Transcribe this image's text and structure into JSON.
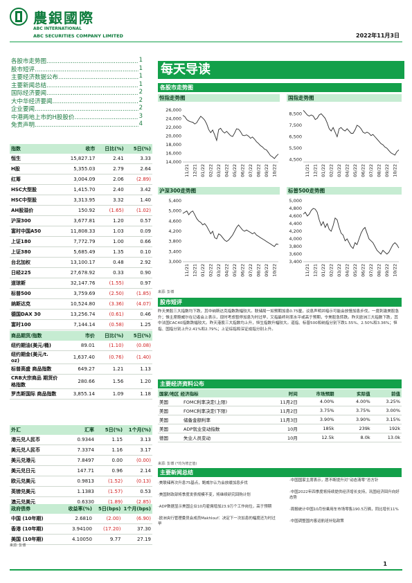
{
  "header": {
    "company_cn": "農銀國際",
    "company_en1": "ABC INTERNATIONAL",
    "company_en2": "ABC SECURITIES COMPANY LIMITED",
    "date": "2022年11月3日",
    "title": "每天导读"
  },
  "toc": [
    {
      "label": "各股市走势图",
      "page": "1"
    },
    {
      "label": "股市短评",
      "page": "1"
    },
    {
      "label": "主要经济数据公布",
      "page": "1"
    },
    {
      "label": "主要新闻总结",
      "page": "1"
    },
    {
      "label": "国际经济要闻",
      "page": "2"
    },
    {
      "label": "大中华经济要闻",
      "page": "2"
    },
    {
      "label": "企业要闻",
      "page": "2"
    },
    {
      "label": "中港两地上市的H股股价",
      "page": "3"
    },
    {
      "label": "免责声明",
      "page": "4"
    }
  ],
  "indices": {
    "headers": [
      "指数",
      "收市",
      "日比(%)",
      "5日(%)"
    ],
    "rows": [
      [
        "恒生",
        "15,827.17",
        "2.41",
        "3.33"
      ],
      [
        "H股",
        "5,355.03",
        "2.79",
        "2.64"
      ],
      [
        "红筹",
        "3,004.09",
        "2.06",
        "(2.89)"
      ],
      [
        "HSC大型股",
        "1,415.70",
        "2.40",
        "3.42"
      ],
      [
        "HSC中型股",
        "3,313.95",
        "3.32",
        "1.40"
      ],
      [
        "AH股溢价",
        "150.92",
        "(1.65)",
        "(1.02)"
      ],
      [
        "沪深300",
        "3,677.81",
        "1.20",
        "0.57"
      ],
      [
        "富时中国A50",
        "11,808.33",
        "1.03",
        "0.09"
      ],
      [
        "上证180",
        "7,772.79",
        "1.00",
        "0.66"
      ],
      [
        "上证380",
        "5,685.49",
        "1.35",
        "0.10"
      ],
      [
        "台北加权",
        "13,100.17",
        "0.48",
        "2.92"
      ],
      [
        "日经225",
        "27,678.92",
        "0.33",
        "0.90"
      ],
      [
        "道琼斯",
        "32,147.76",
        "(1.55)",
        "0.97"
      ],
      [
        "标普500",
        "3,759.69",
        "(2.50)",
        "(1.85)"
      ],
      [
        "纳斯达克",
        "10,524.80",
        "(3.36)",
        "(4.07)"
      ],
      [
        "德国DAX 30",
        "13,256.74",
        "(0.61)",
        "0.46"
      ],
      [
        "富时100",
        "7,144.14",
        "(0.58)",
        "1.25"
      ],
      [
        "法国CAC 40",
        "6,276.88",
        "(0.81)",
        "0.01"
      ]
    ]
  },
  "commodities": {
    "headers": [
      "商品期货/指数",
      "市价",
      "日比(%)",
      "5日(%)"
    ],
    "rows": [
      [
        "纽约期油(美元/桶)",
        "89.01",
        "(1.10)",
        "(0.08)"
      ],
      [
        "纽约期金(美元/t. oz)",
        "1,637.40",
        "(0.76)",
        "(1.40)"
      ],
      [
        "标普高盛 商品指数",
        "649.27",
        "1.21",
        "1.13"
      ],
      [
        "CRB大宗商品 期货价格指数",
        "280.66",
        "1.56",
        "1.20"
      ],
      [
        "罗杰斯国际 商品指数",
        "3,855.14",
        "1.09",
        "1.18"
      ]
    ]
  },
  "fx": {
    "headers": [
      "外汇",
      "汇率",
      "5日(%)",
      "1个月(%)"
    ],
    "rows": [
      [
        "港元兑人民币",
        "0.9344",
        "1.15",
        "3.13"
      ],
      [
        "美元兑人民币",
        "7.3374",
        "1.16",
        "3.17"
      ],
      [
        "美元兑港元",
        "7.8497",
        "0.00",
        "(0.00)"
      ],
      [
        "美元兑日元",
        "147.71",
        "0.96",
        "2.14"
      ],
      [
        "欧元兑美元",
        "0.9813",
        "(1.52)",
        "(0.13)"
      ],
      [
        "英镑兑美元",
        "1.1383",
        "(1.57)",
        "0.53"
      ],
      [
        "澳元兑美元",
        "0.6330",
        "(1.89)",
        "(2.85)"
      ]
    ]
  },
  "bonds": {
    "headers": [
      "政府债券",
      "收益率(%)",
      "5日(bps)",
      "1个月(bps)"
    ],
    "rows": [
      [
        "中国 (10年期)",
        "2.6810",
        "(2.00)",
        "(6.90)"
      ],
      [
        "香港 (10年期)",
        "3.94100",
        "(17.20)",
        "37.30"
      ],
      [
        "美国 (10年期)",
        "4.10050",
        "9.77",
        "27.19"
      ]
    ],
    "source": "来源: 彭博"
  },
  "charts_section": {
    "title": "各股市走势图",
    "source": "来源: 彭博"
  },
  "chart_data": [
    {
      "type": "line",
      "title": "恒指走势图",
      "x_ticks": [
        "11/21",
        "12/21",
        "01/22",
        "02/22",
        "03/22",
        "04/22",
        "05/22",
        "06/22",
        "07/22",
        "08/22",
        "09/22",
        "10/22"
      ],
      "y_ticks": [
        14000,
        16000,
        18000,
        20000,
        22000,
        24000,
        26000
      ],
      "ylim": [
        14000,
        26500
      ],
      "values": [
        24800,
        24500,
        23800,
        23500,
        23300,
        23200,
        22800,
        23100,
        23900,
        24600,
        24200,
        23700,
        22800,
        21500,
        20800,
        21400,
        20300,
        19000,
        21500,
        21800,
        21100,
        20700,
        21100,
        20600,
        20100,
        19900,
        20700,
        21700,
        21600,
        21000,
        20200,
        20100,
        20300,
        20000,
        19500,
        19800,
        19300,
        18700,
        18300,
        17800,
        17500,
        17000,
        16800,
        16200,
        15500,
        15200,
        14800,
        15400,
        15827
      ]
    },
    {
      "type": "line",
      "title": "国指走势图",
      "x_ticks": [
        "11/21",
        "12/21",
        "01/22",
        "02/22",
        "03/22",
        "04/22",
        "05/22",
        "06/22",
        "07/22",
        "08/22",
        "09/22",
        "10/22"
      ],
      "y_ticks": [
        4500,
        5500,
        6500,
        7500,
        8500
      ],
      "ylim": [
        4300,
        9000
      ],
      "values": [
        8800,
        8600,
        8400,
        8300,
        8400,
        8300,
        8000,
        8100,
        8400,
        8500,
        8300,
        8100,
        7700,
        7200,
        7000,
        7300,
        6900,
        6500,
        7200,
        7300,
        7100,
        7000,
        7200,
        7000,
        6800,
        6800,
        7100,
        7500,
        7400,
        7200,
        6900,
        6800,
        6900,
        6800,
        6600,
        6700,
        6500,
        6300,
        6100,
        5900,
        5800,
        5600,
        5500,
        5300,
        5100,
        5000,
        4900,
        5200,
        5355
      ]
    },
    {
      "type": "line",
      "title": "沪深300走势图",
      "x_ticks": [
        "11/21",
        "12/21",
        "01/22",
        "02/22",
        "03/22",
        "04/22",
        "05/22",
        "06/22",
        "07/22",
        "08/22",
        "09/22",
        "10/22"
      ],
      "y_ticks": [
        3000,
        3400,
        3800,
        4200,
        4600,
        5000,
        5400
      ],
      "ylim": [
        3000,
        5400
      ],
      "values": [
        4900,
        4950,
        5000,
        4850,
        4950,
        5000,
        4850,
        4700,
        4600,
        4550,
        4450,
        4500,
        4400,
        4250,
        4100,
        4200,
        3950,
        3900,
        4100,
        4050,
        3950,
        3850,
        3800,
        3850,
        3950,
        4050,
        4200,
        4350,
        4450,
        4350,
        4250,
        4200,
        4250,
        4200,
        4150,
        4100,
        4150,
        4050,
        4000,
        3950,
        3900,
        3850,
        3800,
        3750,
        3700,
        3650,
        3600,
        3700,
        3678
      ]
    },
    {
      "type": "line",
      "title": "标普500走势图",
      "x_ticks": [
        "11/21",
        "12/21",
        "01/22",
        "02/22",
        "03/22",
        "04/22",
        "05/22",
        "06/22",
        "07/22",
        "08/22",
        "09/22",
        "10/22"
      ],
      "y_ticks": [
        3400,
        3600,
        3800,
        4000,
        4200,
        4400,
        4600,
        4800,
        5000
      ],
      "ylim": [
        3400,
        5000
      ],
      "values": [
        4650,
        4700,
        4600,
        4650,
        4750,
        4800,
        4780,
        4700,
        4500,
        4350,
        4450,
        4300,
        4400,
        4250,
        4200,
        4350,
        4550,
        4500,
        4300,
        4150,
        4100,
        3950,
        4000,
        3900,
        3800,
        3750,
        3900,
        3850,
        4000,
        4150,
        4250,
        4300,
        4150,
        4000,
        3950,
        3900,
        3800,
        3700,
        3650,
        3600,
        3700,
        3650,
        3600,
        3650,
        3750,
        3850,
        3900,
        3850,
        3760
      ]
    }
  ],
  "commentary": {
    "title": "股市短评",
    "text": "昨天美股三大指数均下跌，其中纳斯达克指数跌幅较大。联储局一如预期加息0.75厘，议息声明并暗示可能会放慢加息步伐，一度刺激美股急升；惟主席鲍威尔在记者会上表示，现时考虑暂停加息为时过早，又指最终利率水平或高于预期，令美股急转跌。昨天欧洲三大指数下跌，其中法国CAC40指数跌幅较大。昨天港股三大指数均上升，恒生指数升幅较大。道指、标普500和纳指分别下跌1.55%、2.50%和3.36%；恒指、国指分别上升2.41%和2.79%；上证综指和深证成指分别上升。"
  },
  "econ": {
    "title": "主要经济资料公布",
    "headers": [
      "国家/地区 经济指标",
      "时间",
      "市场预期",
      "实际值",
      "前值"
    ],
    "rows": [
      [
        "美国",
        "FOMC利率决定(上限)",
        "11月2日",
        "4.00%",
        "4.00%",
        "3.25%"
      ],
      [
        "美国",
        "FOMC利率决定(下限)",
        "11月2日",
        "3.75%",
        "3.75%",
        "3.00%"
      ],
      [
        "美国",
        "储备金额利率",
        "11月3日",
        "3.90%",
        "3.90%",
        "3.15%"
      ],
      [
        "美国",
        "ADP就业变动指数",
        "10月",
        "185k",
        "239k",
        "192k"
      ],
      [
        "德国",
        "失业人员变动",
        "10月",
        "12.5k",
        "8.0k",
        "13.0k"
      ]
    ],
    "source": "来源: 彭博 (*均为修正值)"
  },
  "news": {
    "title": "主要新闻总结",
    "left": [
      "·美联储再次升息75基点，鲍威尔认为会放缓加息步伐",
      "·美国财政部将季度发债规模不变，将继续研究回购计划",
      "·ADP数据显示美国企业10月雇佣增加23.9万个工作岗位，高于预期",
      "·欧洲央行管理委员会成员Makhlouf：决定下一次加息的幅度还为时过早"
    ],
    "right": [
      "·中国国家主席表示，愿不断提升对“动态清零”总方针",
      "·中国2022年四季度将持续提供经济增长支持，巩固经济回升向好态势",
      "·周报统计中国10月份乘用车市场零售190.5万辆，同比增长11%",
      "·中国调整国内客运航班补贴政策"
    ]
  },
  "page_number": "1",
  "colors": {
    "accent": "#13a04a",
    "header_bg": "#c6ecd2",
    "negative": "#d01c1c"
  }
}
